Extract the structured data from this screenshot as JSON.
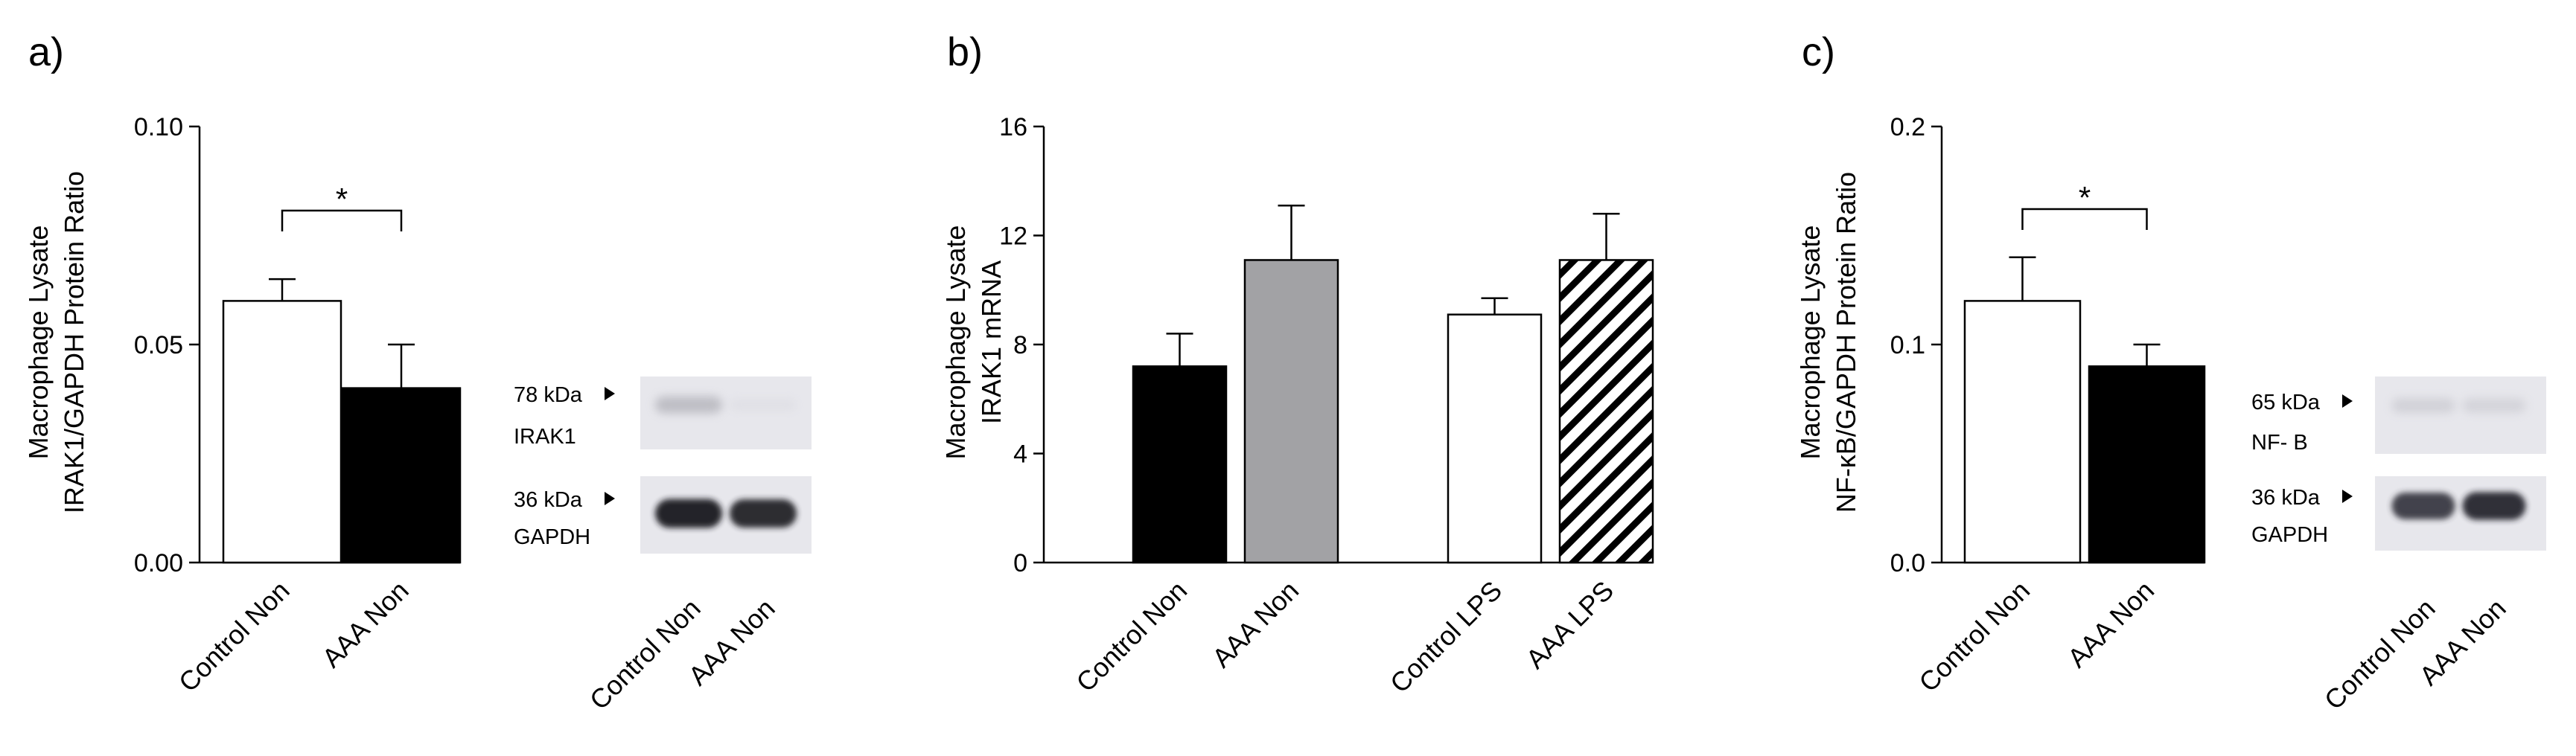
{
  "chart_data": [
    {
      "panel": "a)",
      "type": "bar",
      "ylabel": [
        "Macrophage Lysate",
        "IRAK1/GAPDH Protein Ratio"
      ],
      "ylim": [
        0,
        0.1
      ],
      "yticks": [
        0.0,
        0.05,
        0.1
      ],
      "ytick_labels": [
        "0.00",
        "0.05",
        "0.10"
      ],
      "categories": [
        "Control Non",
        "AAA Non"
      ],
      "values": [
        0.06,
        0.04
      ],
      "errors": [
        0.005,
        0.01
      ],
      "fills": [
        "white",
        "black"
      ],
      "significance": [
        {
          "from": 0,
          "to": 1,
          "label": "*"
        }
      ],
      "blot": {
        "lanes": [
          "Control Non",
          "AAA Non"
        ],
        "bands": [
          {
            "size": "78 kDa",
            "name": "IRAK1",
            "intensity": [
              0.35,
              0.08
            ]
          },
          {
            "size": "36 kDa",
            "name": "GAPDH",
            "intensity": [
              0.95,
              0.92
            ]
          }
        ]
      }
    },
    {
      "panel": "b)",
      "type": "bar",
      "ylabel": [
        "Macrophage Lysate",
        "IRAK1 mRNA"
      ],
      "ylim": [
        0,
        16
      ],
      "yticks": [
        0,
        4,
        8,
        12,
        16
      ],
      "ytick_labels": [
        "0",
        "4",
        "8",
        "12",
        "16"
      ],
      "categories": [
        "Control Non",
        "AAA Non",
        "Control LPS",
        "AAA LPS"
      ],
      "values": [
        7.2,
        11.1,
        9.1,
        11.1
      ],
      "errors": [
        1.2,
        2.0,
        0.6,
        1.7
      ],
      "fills": [
        "black",
        "gray",
        "white",
        "hatched"
      ]
    },
    {
      "panel": "c)",
      "type": "bar",
      "ylabel": [
        "Macrophage Lysate",
        "NF-κB/GAPDH Protein Ratio"
      ],
      "ylim": [
        0,
        0.2
      ],
      "yticks": [
        0.0,
        0.1,
        0.2
      ],
      "ytick_labels": [
        "0.0",
        "0.1",
        "0.2"
      ],
      "categories": [
        "Control Non",
        "AAA Non"
      ],
      "values": [
        0.12,
        0.09
      ],
      "errors": [
        0.02,
        0.01
      ],
      "fills": [
        "white",
        "black"
      ],
      "significance": [
        {
          "from": 0,
          "to": 1,
          "label": "*"
        }
      ],
      "blot": {
        "lanes": [
          "Control Non",
          "AAA Non"
        ],
        "bands": [
          {
            "size": "65 kDa",
            "name": "NF-   B",
            "intensity": [
              0.22,
              0.2
            ]
          },
          {
            "size": "36 kDa",
            "name": "GAPDH",
            "intensity": [
              0.85,
              0.9
            ]
          }
        ]
      }
    }
  ]
}
